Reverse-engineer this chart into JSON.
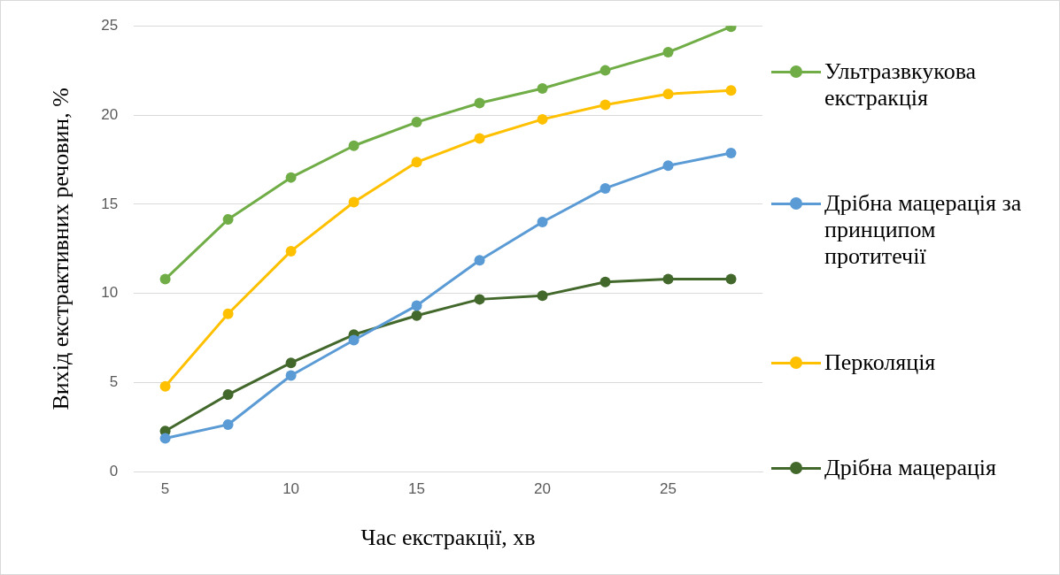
{
  "chart_data": {
    "type": "line",
    "xlabel": "Час екстракції, хв",
    "ylabel": "Вихід екстрактивних речовин, %",
    "x": [
      5,
      7.5,
      10,
      12.5,
      15,
      17.5,
      20,
      22.5,
      25,
      27.5
    ],
    "xlim": [
      3.75,
      28.75
    ],
    "xticks": [
      5,
      10,
      15,
      20,
      25
    ],
    "ylim": [
      0,
      25
    ],
    "yticks": [
      0,
      5,
      10,
      15,
      20,
      25
    ],
    "grid": "y",
    "legend": "right",
    "marker": "circle",
    "line_style": "solid",
    "series": [
      {
        "name": "Ультразвкукова екстракція",
        "color": "#70ad47",
        "values": [
          10.8,
          14.15,
          16.5,
          18.28,
          19.6,
          20.67,
          21.49,
          22.5,
          23.52,
          24.95
        ]
      },
      {
        "name": "Дрібна мацерація за принципом протитечії",
        "color": "#5b9bd5",
        "values": [
          1.88,
          2.65,
          5.4,
          7.38,
          9.32,
          11.86,
          14.0,
          15.89,
          17.16,
          17.87
        ]
      },
      {
        "name": "Перколяція",
        "color": "#ffc000",
        "values": [
          4.79,
          8.86,
          12.37,
          15.12,
          17.36,
          18.69,
          19.76,
          20.57,
          21.18,
          21.38
        ]
      },
      {
        "name": "Дрібна мацерація",
        "color": "#43682b",
        "values": [
          2.29,
          4.33,
          6.11,
          7.69,
          8.76,
          9.67,
          9.88,
          10.64,
          10.8,
          10.8
        ]
      }
    ]
  }
}
